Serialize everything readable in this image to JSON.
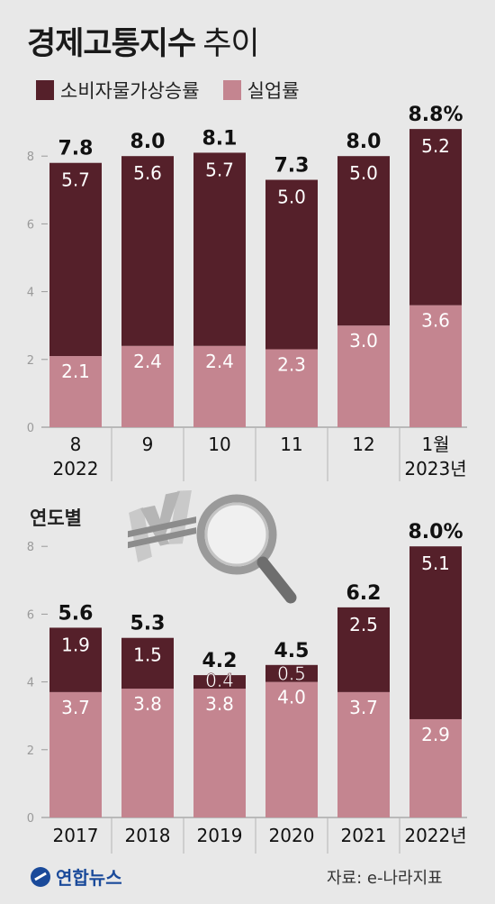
{
  "title": "경제고통지수",
  "subtitle": "추이",
  "legend": [
    {
      "label": "소비자물가상승률",
      "color": "#55202a"
    },
    {
      "label": "실업률",
      "color": "#c48590"
    }
  ],
  "chart_data": [
    {
      "type": "bar",
      "stacked": true,
      "categories": [
        "8\n2022",
        "9",
        "10",
        "11",
        "12",
        "1월\n2023년"
      ],
      "series": [
        {
          "name": "실업률",
          "values": [
            2.1,
            2.4,
            2.4,
            2.3,
            3.0,
            3.6
          ]
        },
        {
          "name": "소비자물가상승률",
          "values": [
            5.7,
            5.6,
            5.7,
            5.0,
            5.0,
            5.2
          ]
        }
      ],
      "totals": [
        "7.8",
        "8.0",
        "8.1",
        "7.3",
        "8.0",
        "8.8%"
      ],
      "yticks": [
        0,
        2,
        4,
        6,
        8
      ],
      "ylim": [
        0,
        8.8
      ],
      "grid": false,
      "legend": "top-left"
    },
    {
      "type": "bar",
      "stacked": true,
      "title": "연도별",
      "categories": [
        "2017",
        "2018",
        "2019",
        "2020",
        "2021",
        "2022년"
      ],
      "series": [
        {
          "name": "실업률",
          "values": [
            3.7,
            3.8,
            3.8,
            4.0,
            3.7,
            2.9
          ]
        },
        {
          "name": "소비자물가상승률",
          "values": [
            1.9,
            1.5,
            0.4,
            0.5,
            2.5,
            5.1
          ]
        }
      ],
      "totals": [
        "5.6",
        "5.3",
        "4.2",
        "4.5",
        "6.2",
        "8.0%"
      ],
      "yticks": [
        0,
        2,
        4,
        6,
        8
      ],
      "ylim": [
        0,
        8.0
      ],
      "grid": false
    }
  ],
  "source": "자료: e-나라지표",
  "brand": "연합뉴스",
  "icons": [
    "won-sign-icon",
    "magnifier-icon"
  ]
}
